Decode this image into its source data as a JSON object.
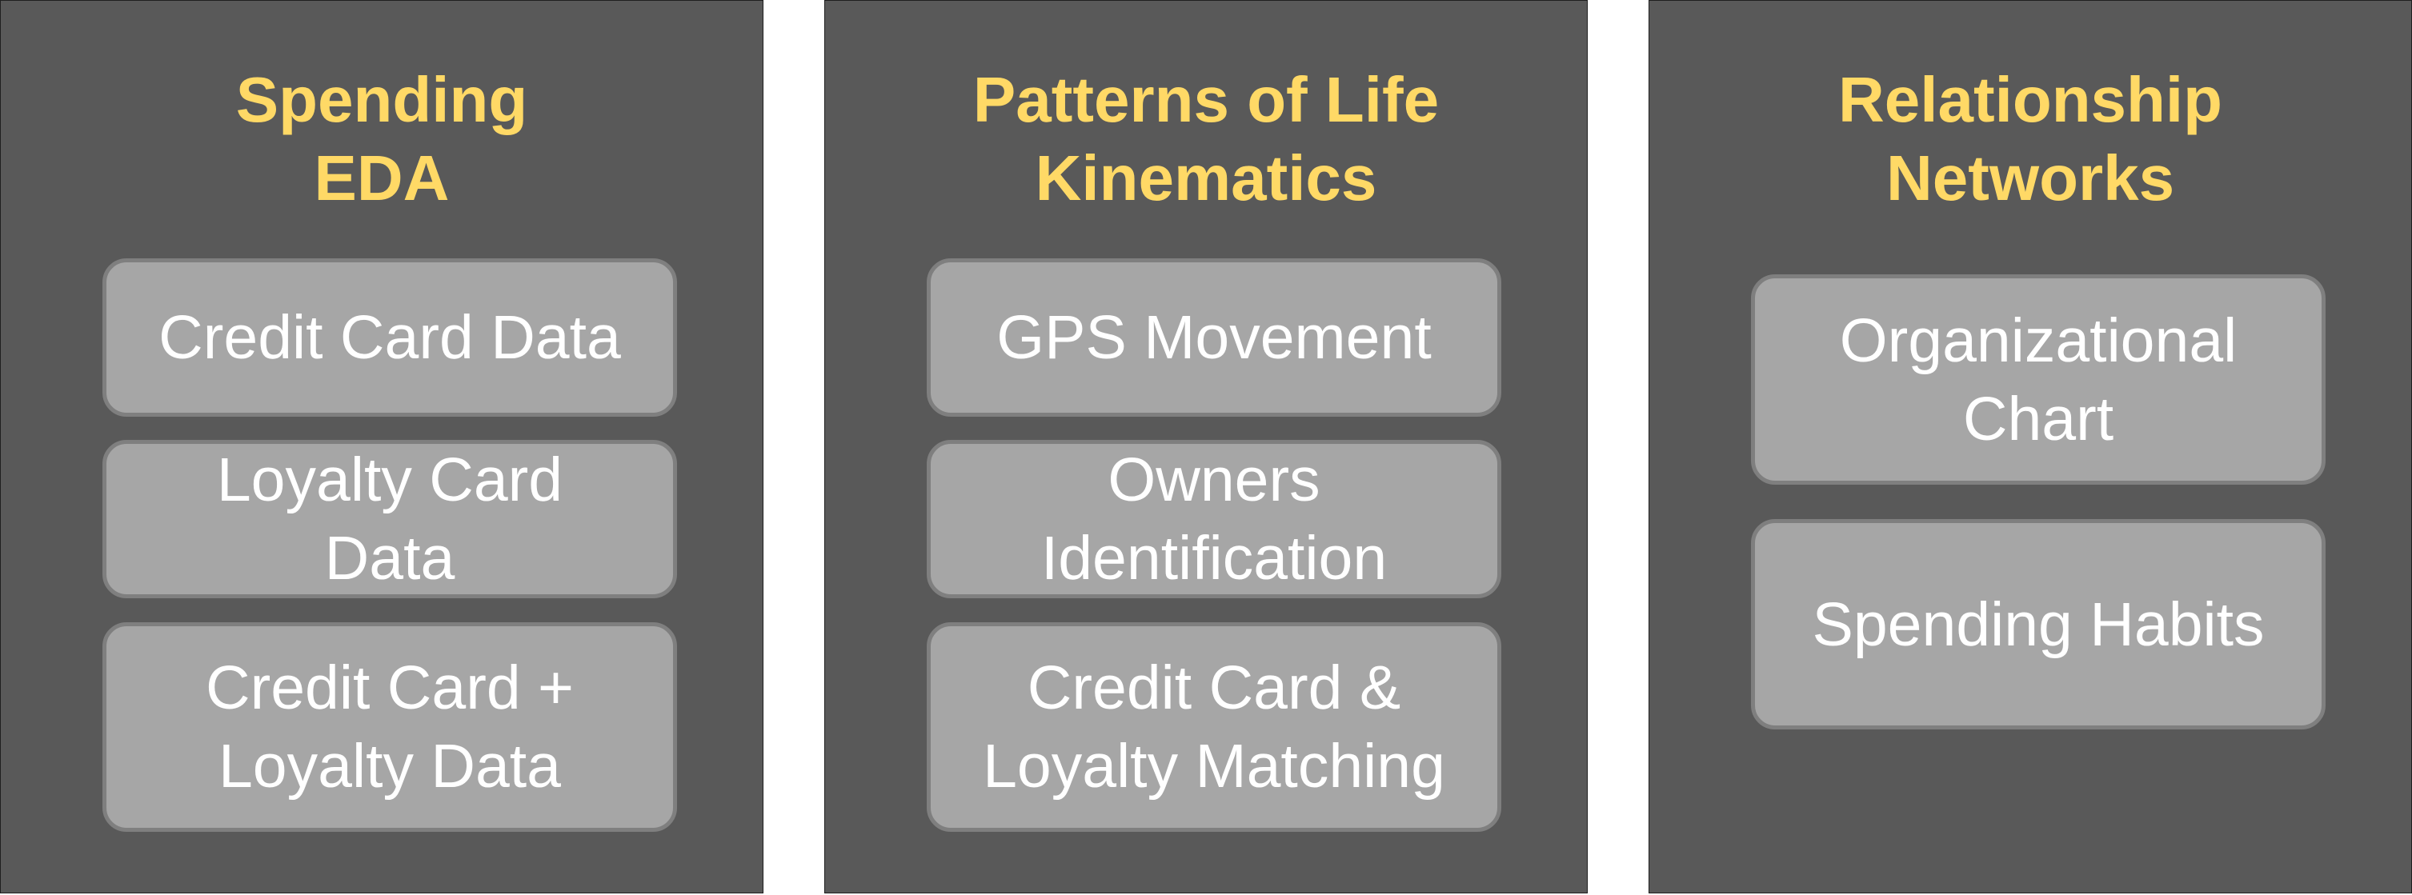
{
  "panels": [
    {
      "title_lines": [
        "Spending",
        "EDA"
      ],
      "items": [
        {
          "lines": [
            "Credit Card Data"
          ]
        },
        {
          "lines": [
            "Loyalty Card",
            "Data"
          ]
        },
        {
          "lines": [
            "Credit Card +",
            "Loyalty Data"
          ]
        }
      ]
    },
    {
      "title_lines": [
        "Patterns of Life",
        "Kinematics"
      ],
      "items": [
        {
          "lines": [
            "GPS Movement"
          ]
        },
        {
          "lines": [
            "Owners",
            "Identification"
          ]
        },
        {
          "lines": [
            "Credit Card &",
            "Loyalty Matching"
          ]
        }
      ]
    },
    {
      "title_lines": [
        "Relationship",
        "Networks"
      ],
      "items": [
        {
          "lines": [
            "Organizational",
            "Chart"
          ]
        },
        {
          "lines": [
            "Spending Habits"
          ]
        }
      ]
    }
  ],
  "colors": {
    "panel_background": "#595959",
    "title_text": "#ffd966",
    "box_background": "#a6a6a6",
    "box_border": "#7f7f7f",
    "box_text": "#ffffff"
  }
}
